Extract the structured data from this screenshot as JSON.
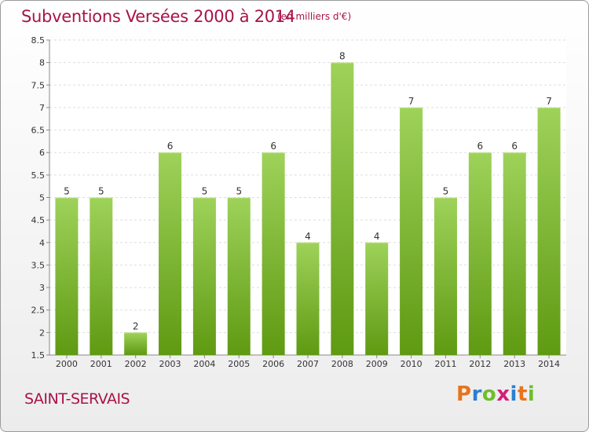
{
  "header": {
    "title": "Subventions Versées 2000 à 2014",
    "subtitle": "(en milliers d'€)"
  },
  "footer": {
    "commune": "SAINT-SERVAIS",
    "logo_text": "Proxiti"
  },
  "colors": {
    "title": "#a8134a",
    "bar_top": "#9ed25a",
    "bar_bottom": "#5f9a12",
    "logo_letters": [
      "#e8731c",
      "#2b7fd1",
      "#6dbf2a",
      "#d2207a",
      "#2b7fd1",
      "#e8731c",
      "#6dbf2a"
    ]
  },
  "chart_data": {
    "type": "bar",
    "title": "Subventions Versées 2000 à 2014",
    "subtitle": "(en milliers d'€)",
    "xlabel": "",
    "ylabel": "",
    "categories": [
      "2000",
      "2001",
      "2002",
      "2003",
      "2004",
      "2005",
      "2006",
      "2007",
      "2008",
      "2009",
      "2010",
      "2011",
      "2012",
      "2013",
      "2014"
    ],
    "values": [
      5,
      5,
      2,
      6,
      5,
      5,
      6,
      4,
      8,
      4,
      7,
      5,
      6,
      6,
      7
    ],
    "ylim": [
      1.5,
      8.5
    ],
    "yticks": [
      "1.5",
      "2",
      "2.5",
      "3",
      "3.5",
      "4",
      "4.5",
      "5",
      "5.5",
      "6",
      "6.5",
      "7",
      "7.5",
      "8",
      "8.5"
    ],
    "grid": true,
    "legend": "none"
  }
}
